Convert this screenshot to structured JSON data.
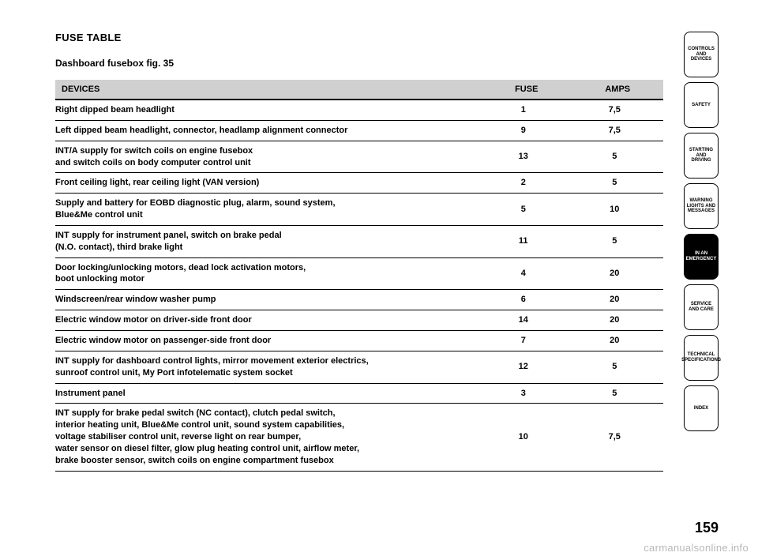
{
  "title": "FUSE TABLE",
  "subtitle": "Dashboard fusebox fig. 35",
  "headers": {
    "devices": "DEVICES",
    "fuse": "FUSE",
    "amps": "AMPS"
  },
  "rows": [
    {
      "device": "Right dipped beam headlight",
      "fuse": "1",
      "amps": "7,5"
    },
    {
      "device": "Left dipped beam headlight, connector, headlamp alignment connector",
      "fuse": "9",
      "amps": "7,5"
    },
    {
      "device": "INT/A supply for switch coils on engine fusebox<br>and switch coils on body computer control unit",
      "fuse": "13",
      "amps": "5"
    },
    {
      "device": "Front ceiling light, rear ceiling light (VAN version)",
      "fuse": "2",
      "amps": "5"
    },
    {
      "device": "Supply and battery for EOBD diagnostic plug, alarm, sound system,<br>Blue&amp;Me control unit",
      "fuse": "5",
      "amps": "10"
    },
    {
      "device": "INT supply for instrument panel, switch on brake pedal<br>(N.O. contact), third brake light",
      "fuse": "11",
      "amps": "5"
    },
    {
      "device": "Door locking/unlocking motors, dead lock activation motors,<br>boot unlocking motor",
      "fuse": "4",
      "amps": "20"
    },
    {
      "device": "Windscreen/rear window washer pump",
      "fuse": "6",
      "amps": "20"
    },
    {
      "device": "Electric window motor on driver-side front door",
      "fuse": "14",
      "amps": "20"
    },
    {
      "device": "Electric window motor on passenger-side front door",
      "fuse": "7",
      "amps": "20"
    },
    {
      "device": "INT supply for dashboard control lights, mirror movement exterior electrics,<br>sunroof control unit, My Port infotelematic system socket",
      "fuse": "12",
      "amps": "5"
    },
    {
      "device": "Instrument panel",
      "fuse": "3",
      "amps": "5"
    },
    {
      "device": "INT supply for brake pedal switch (NC contact), clutch pedal switch,<br>interior heating unit, Blue&amp;Me control unit, sound system capabilities,<br>voltage stabiliser control unit, reverse light on rear bumper,<br>water sensor on diesel filter, glow plug heating control unit, airflow meter,<br>brake booster sensor, switch coils on engine compartment fusebox",
      "fuse": "10",
      "amps": "7,5"
    }
  ],
  "tabs": [
    {
      "label": "CONTROLS AND DEVICES",
      "active": false
    },
    {
      "label": "SAFETY",
      "active": false
    },
    {
      "label": "STARTING AND DRIVING",
      "active": false
    },
    {
      "label": "WARNING LIGHTS AND MESSAGES",
      "active": false
    },
    {
      "label": "IN AN EMERGENCY",
      "active": true
    },
    {
      "label": "SERVICE AND CARE",
      "active": false
    },
    {
      "label": "TECHNICAL SPECIFICATIONS",
      "active": false
    },
    {
      "label": "INDEX",
      "active": false
    }
  ],
  "page_number": "159",
  "watermark": "carmanualsonline.info",
  "colors": {
    "header_bg": "#d0d0d0",
    "text": "#000000",
    "bg": "#ffffff",
    "watermark": "#b8b8b8"
  }
}
